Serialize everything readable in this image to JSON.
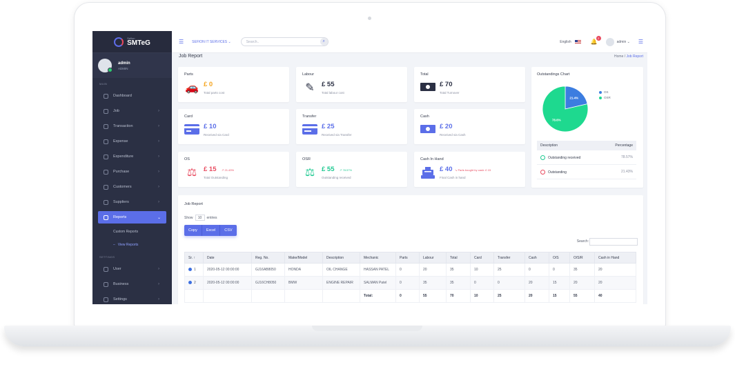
{
  "brand": {
    "sub": "Sefion",
    "name": "SMTeG"
  },
  "user": {
    "name": "admin",
    "role": "ADMIN"
  },
  "sidebar": {
    "main_label": "MAIN",
    "items": [
      {
        "label": "Dashboard",
        "icon": "dashboard-icon"
      },
      {
        "label": "Job",
        "icon": "wrench-icon"
      },
      {
        "label": "Transaction",
        "icon": "transaction-icon"
      },
      {
        "label": "Expense",
        "icon": "expense-icon"
      },
      {
        "label": "Expenditure",
        "icon": "expenditure-icon"
      },
      {
        "label": "Purchase",
        "icon": "cart-icon"
      },
      {
        "label": "Customers",
        "icon": "users-icon"
      },
      {
        "label": "Suppliers",
        "icon": "truck-icon"
      },
      {
        "label": "Reports",
        "icon": "pie-icon"
      }
    ],
    "sub_items": [
      "Custom Reports",
      "View Reports"
    ],
    "settings_label": "SETTINGS",
    "settings_items": [
      {
        "label": "User",
        "icon": "user-icon"
      },
      {
        "label": "Business",
        "icon": "briefcase-icon"
      },
      {
        "label": "Settings",
        "icon": "gear-icon"
      }
    ]
  },
  "topbar": {
    "company": "SEFION IT SERVICES",
    "search_placeholder": "Search..",
    "language": "English",
    "notification_count": "2",
    "user": "admin"
  },
  "page": {
    "title": "Job Report",
    "breadcrumb": [
      "Home",
      "Job Report"
    ]
  },
  "cards": [
    {
      "title": "Parts",
      "value": "£ 0",
      "desc": "Total parts cost",
      "color": "#f5a623",
      "icon": "car-crash-icon"
    },
    {
      "title": "Labour",
      "value": "£ 55",
      "desc": "Total labour cost",
      "color": "#2b3044",
      "icon": "screwdriver-icon"
    },
    {
      "title": "Total",
      "value": "£ 70",
      "desc": "Total Turnover",
      "color": "#2b3044",
      "icon": "money-icon"
    },
    {
      "title": "Card",
      "value": "£ 10",
      "desc": "Received via Card",
      "color": "#5b6ee8",
      "icon": "credit-card-icon"
    },
    {
      "title": "Transfer",
      "value": "£ 25",
      "desc": "Received via Transfer",
      "color": "#5b6ee8",
      "icon": "transfer-card-icon"
    },
    {
      "title": "Cash",
      "value": "£ 20",
      "desc": "Received via Cash",
      "color": "#5b6ee8",
      "icon": "cash-icon"
    },
    {
      "title": "OS",
      "value": "£ 15",
      "desc": "Total Outstanding",
      "color": "#e84a5f",
      "icon": "scale-icon",
      "trend": "21.43%"
    },
    {
      "title": "OSR",
      "value": "£ 55",
      "desc": "Outstanding received",
      "color": "#1ec991",
      "icon": "scale-icon",
      "trend": "78.57%"
    },
    {
      "title": "Cash In Hand",
      "value": "£ 40",
      "desc": "Final Cash in hand",
      "color": "#5b6ee8",
      "icon": "cash-register-icon",
      "trend": "Parts bought by cash: £ 15"
    }
  ],
  "outstandings": {
    "title": "Outstandings Chart",
    "table_headers": [
      "Description",
      "Percentage"
    ],
    "rows": [
      {
        "label": "Outstanding received",
        "pct": "78.57%"
      },
      {
        "label": "Outstanding",
        "pct": "21.43%"
      }
    ]
  },
  "chart_data": {
    "type": "pie",
    "title": "Outstandings Chart",
    "categories": [
      "OS",
      "OSR"
    ],
    "values": [
      21.43,
      78.57
    ],
    "labels": [
      "21.4%",
      "78.6%"
    ],
    "colors": [
      "#3c7de0",
      "#1ed98f"
    ],
    "legend": "right"
  },
  "report": {
    "title": "Job Report",
    "show": "Show",
    "entries_value": "10",
    "entries": "entries",
    "buttons": [
      "Copy",
      "Excel",
      "CSV"
    ],
    "search_label": "Search:",
    "columns": [
      "Sr.",
      "Date",
      "Reg. No.",
      "Make/Model",
      "Description",
      "Mechanic",
      "Parts",
      "Labour",
      "Total",
      "Card",
      "Transfer",
      "Cash",
      "O/S",
      "O/S/R",
      "Cash in Hand"
    ],
    "rows": [
      [
        "1",
        "2020-05-12 00:00:00",
        "GJ16AB8050",
        "HONDA",
        "OIL CHANGE",
        "HASSAN PATEL",
        "0",
        "20",
        "35",
        "10",
        "25",
        "0",
        "0",
        "35",
        "20"
      ],
      [
        "2",
        "2020-05-12 00:00:00",
        "GJ16CH8050",
        "BMW",
        "ENGINE REPAIR",
        "SALMAN Patel",
        "0",
        "35",
        "35",
        "0",
        "0",
        "20",
        "15",
        "20",
        "20"
      ]
    ],
    "totals": [
      "",
      "",
      "",
      "",
      "",
      "Total:",
      "0",
      "55",
      "70",
      "10",
      "25",
      "20",
      "15",
      "55",
      "40"
    ]
  }
}
